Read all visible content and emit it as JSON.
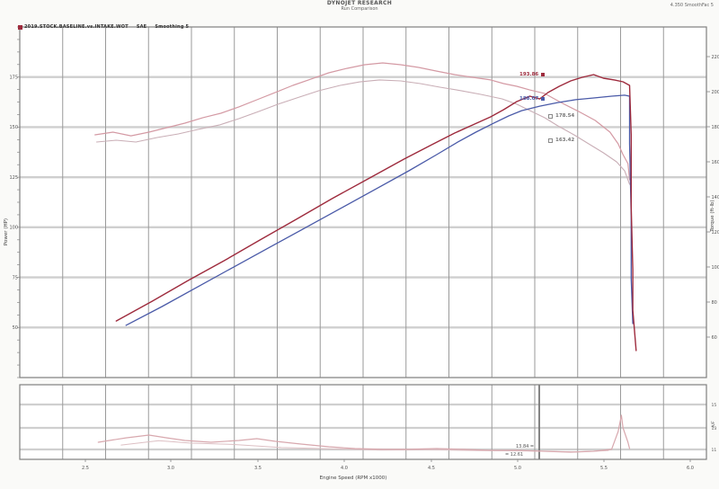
{
  "header": {
    "title_line1": "DYNOJET RESEARCH",
    "title_line2": "Run Comparison",
    "top_right_info": "4.350  SmoothFac 5"
  },
  "legend": {
    "marker_color": "#9e2b3d",
    "segments": [
      "2019.STOCK.BASELINE.vs.INTAKE.WOT",
      "SAE",
      "Smoothing 5"
    ]
  },
  "chart_data": [
    {
      "type": "line",
      "title": "Power and Torque vs Engine Speed",
      "x_axis": {
        "label": "Engine Speed (RPM x1000)",
        "range": [
          2.0,
          6.2
        ],
        "ticks": [
          "2.5",
          "3.0",
          "3.5",
          "4.0",
          "4.5",
          "5.0",
          "5.5",
          "6.0"
        ],
        "grid": true
      },
      "y_left": {
        "label": "Power (HP)",
        "range": [
          0,
          225
        ],
        "ticks": [
          "175",
          "150",
          "125",
          "100",
          "75",
          "50"
        ]
      },
      "y_right": {
        "label": "Torque (ft-lb)",
        "range": [
          0,
          260
        ],
        "ticks": [
          "220",
          "200",
          "180",
          "160",
          "140",
          "120",
          "100",
          "80",
          "60"
        ]
      },
      "legend_position": "top-left",
      "series": [
        {
          "name": "run1-torque",
          "axis": "right",
          "color": "#d49aa4",
          "width": 1.2,
          "points": [
            [
              2.46,
              180
            ],
            [
              2.57,
              182
            ],
            [
              2.68,
              179.3
            ],
            [
              2.79,
              182
            ],
            [
              2.9,
              185.3
            ],
            [
              3.01,
              188.7
            ],
            [
              3.12,
              192.7
            ],
            [
              3.23,
              196
            ],
            [
              3.34,
              200.7
            ],
            [
              3.45,
              206
            ],
            [
              3.56,
              211.3
            ],
            [
              3.67,
              216.7
            ],
            [
              3.78,
              221.3
            ],
            [
              3.89,
              226
            ],
            [
              4.0,
              229.3
            ],
            [
              4.11,
              232
            ],
            [
              4.22,
              233.3
            ],
            [
              4.33,
              232
            ],
            [
              4.44,
              230
            ],
            [
              4.55,
              227.3
            ],
            [
              4.66,
              224.7
            ],
            [
              4.77,
              222.7
            ],
            [
              4.88,
              220.7
            ],
            [
              4.96,
              218
            ],
            [
              5.04,
              216
            ],
            [
              5.12,
              213.3
            ],
            [
              5.21,
              210.7
            ],
            [
              5.26,
              207.3
            ],
            [
              5.33,
              202.7
            ],
            [
              5.42,
              197.3
            ],
            [
              5.52,
              190.7
            ],
            [
              5.61,
              182
            ],
            [
              5.66,
              173.3
            ],
            [
              5.69,
              165.3
            ],
            [
              5.72,
              158.7
            ],
            [
              5.73,
              146.7
            ]
          ]
        },
        {
          "name": "run2-torque",
          "axis": "right",
          "color": "#c9aeb6",
          "width": 1.1,
          "points": [
            [
              2.47,
              174.7
            ],
            [
              2.59,
              176
            ],
            [
              2.71,
              174.7
            ],
            [
              2.84,
              178
            ],
            [
              2.97,
              180.7
            ],
            [
              3.09,
              184
            ],
            [
              3.22,
              187.3
            ],
            [
              3.34,
              192
            ],
            [
              3.46,
              197.3
            ],
            [
              3.58,
              202.7
            ],
            [
              3.71,
              208
            ],
            [
              3.83,
              212.7
            ],
            [
              3.96,
              216.7
            ],
            [
              4.08,
              219.3
            ],
            [
              4.2,
              220.7
            ],
            [
              4.33,
              220
            ],
            [
              4.45,
              218
            ],
            [
              4.57,
              215.3
            ],
            [
              4.7,
              212.7
            ],
            [
              4.82,
              210
            ],
            [
              4.95,
              206.7
            ],
            [
              5.04,
              202.7
            ],
            [
              5.12,
              198
            ],
            [
              5.21,
              192.7
            ],
            [
              5.29,
              186.7
            ],
            [
              5.39,
              180
            ],
            [
              5.48,
              173.3
            ],
            [
              5.57,
              166.7
            ],
            [
              5.65,
              160
            ],
            [
              5.7,
              153.3
            ],
            [
              5.73,
              143.3
            ]
          ]
        },
        {
          "name": "run2-power",
          "axis": "left",
          "color": "#4a5aa8",
          "width": 1.3,
          "points": [
            [
              2.65,
              33.5
            ],
            [
              2.87,
              45.6
            ],
            [
              3.09,
              58.3
            ],
            [
              3.31,
              71
            ],
            [
              3.53,
              83.7
            ],
            [
              3.75,
              96.3
            ],
            [
              3.97,
              109
            ],
            [
              4.19,
              121.7
            ],
            [
              4.38,
              132.7
            ],
            [
              4.55,
              143.1
            ],
            [
              4.68,
              151.2
            ],
            [
              4.79,
              157.5
            ],
            [
              4.9,
              163.3
            ],
            [
              4.99,
              167.9
            ],
            [
              5.07,
              171.3
            ],
            [
              5.18,
              174.2
            ],
            [
              5.29,
              176.5
            ],
            [
              5.4,
              178.3
            ],
            [
              5.51,
              179.4
            ],
            [
              5.62,
              180.6
            ],
            [
              5.7,
              181.2
            ],
            [
              5.73,
              180.6
            ],
            [
              5.73,
              150
            ],
            [
              5.74,
              103.8
            ],
            [
              5.74,
              63.5
            ],
            [
              5.75,
              34.6
            ]
          ]
        },
        {
          "name": "run1-power",
          "axis": "left",
          "color": "#9e2b3d",
          "width": 1.4,
          "points": [
            [
              2.59,
              36.3
            ],
            [
              2.81,
              49
            ],
            [
              3.03,
              62.3
            ],
            [
              3.25,
              75
            ],
            [
              3.47,
              88.3
            ],
            [
              3.69,
              101.5
            ],
            [
              3.91,
              114.8
            ],
            [
              4.13,
              127.5
            ],
            [
              4.35,
              140.2
            ],
            [
              4.52,
              149.4
            ],
            [
              4.66,
              156.9
            ],
            [
              4.77,
              162.1
            ],
            [
              4.88,
              167.3
            ],
            [
              4.96,
              171.9
            ],
            [
              5.04,
              177.1
            ],
            [
              5.12,
              180.6
            ],
            [
              5.18,
              178.8
            ],
            [
              5.23,
              182.9
            ],
            [
              5.3,
              186.9
            ],
            [
              5.37,
              190.4
            ],
            [
              5.44,
              192.7
            ],
            [
              5.51,
              194.4
            ],
            [
              5.57,
              192.1
            ],
            [
              5.64,
              190.9
            ],
            [
              5.69,
              189.8
            ],
            [
              5.73,
              187.5
            ],
            [
              5.74,
              155.8
            ],
            [
              5.74,
              109.6
            ],
            [
              5.75,
              69.2
            ],
            [
              5.75,
              43.3
            ],
            [
              5.77,
              17.3
            ]
          ]
        }
      ],
      "annotations": [
        {
          "value": "193.86",
          "marker": "filled",
          "color": "#9e2b3d"
        },
        {
          "value": "188.07",
          "marker": "filled",
          "color": "#4a5aa8"
        },
        {
          "value": "178.54",
          "marker": "open",
          "color": "#777777"
        },
        {
          "value": "163.42",
          "marker": "open",
          "color": "#777777"
        }
      ]
    },
    {
      "type": "line",
      "title": "Air/Fuel Ratio vs Engine Speed",
      "x_axis": {
        "label": "Engine Speed (RPM x1000)",
        "range": [
          2.0,
          6.2
        ],
        "grid": true
      },
      "y_right": {
        "label": "A/F",
        "range": [
          10,
          16
        ],
        "ticks": [
          "15",
          "13",
          "11"
        ]
      },
      "series": [
        {
          "name": "run2-afr",
          "color": "#ddc0c4",
          "width": 1.0,
          "points": [
            [
              2.62,
              11.15
            ],
            [
              2.85,
              11.5
            ],
            [
              3.05,
              11.3
            ],
            [
              3.3,
              11.2
            ],
            [
              3.6,
              10.95
            ],
            [
              3.9,
              10.85
            ],
            [
              4.2,
              10.75
            ],
            [
              4.5,
              10.78
            ],
            [
              4.8,
              10.7
            ],
            [
              5.1,
              10.68
            ],
            [
              5.4,
              10.6
            ],
            [
              5.6,
              10.7
            ]
          ]
        },
        {
          "name": "run1-afr",
          "color": "#d8a8ae",
          "width": 1.2,
          "points": [
            [
              2.48,
              11.37
            ],
            [
              2.65,
              11.73
            ],
            [
              2.79,
              11.95
            ],
            [
              2.9,
              11.73
            ],
            [
              3.01,
              11.52
            ],
            [
              3.17,
              11.37
            ],
            [
              3.34,
              11.52
            ],
            [
              3.45,
              11.66
            ],
            [
              3.56,
              11.45
            ],
            [
              3.72,
              11.23
            ],
            [
              3.89,
              11.01
            ],
            [
              4.05,
              10.87
            ],
            [
              4.22,
              10.8
            ],
            [
              4.38,
              10.8
            ],
            [
              4.55,
              10.87
            ],
            [
              4.71,
              10.8
            ],
            [
              4.88,
              10.72
            ],
            [
              5.04,
              10.72
            ],
            [
              5.21,
              10.65
            ],
            [
              5.37,
              10.58
            ],
            [
              5.51,
              10.65
            ],
            [
              5.62,
              10.8
            ],
            [
              5.66,
              12.24
            ],
            [
              5.68,
              13.54
            ],
            [
              5.69,
              12.53
            ],
            [
              5.72,
              11.37
            ],
            [
              5.73,
              10.87
            ]
          ]
        }
      ],
      "annotations": [
        {
          "value": "13.84 ="
        },
        {
          "value": "= 12.61"
        }
      ]
    }
  ]
}
